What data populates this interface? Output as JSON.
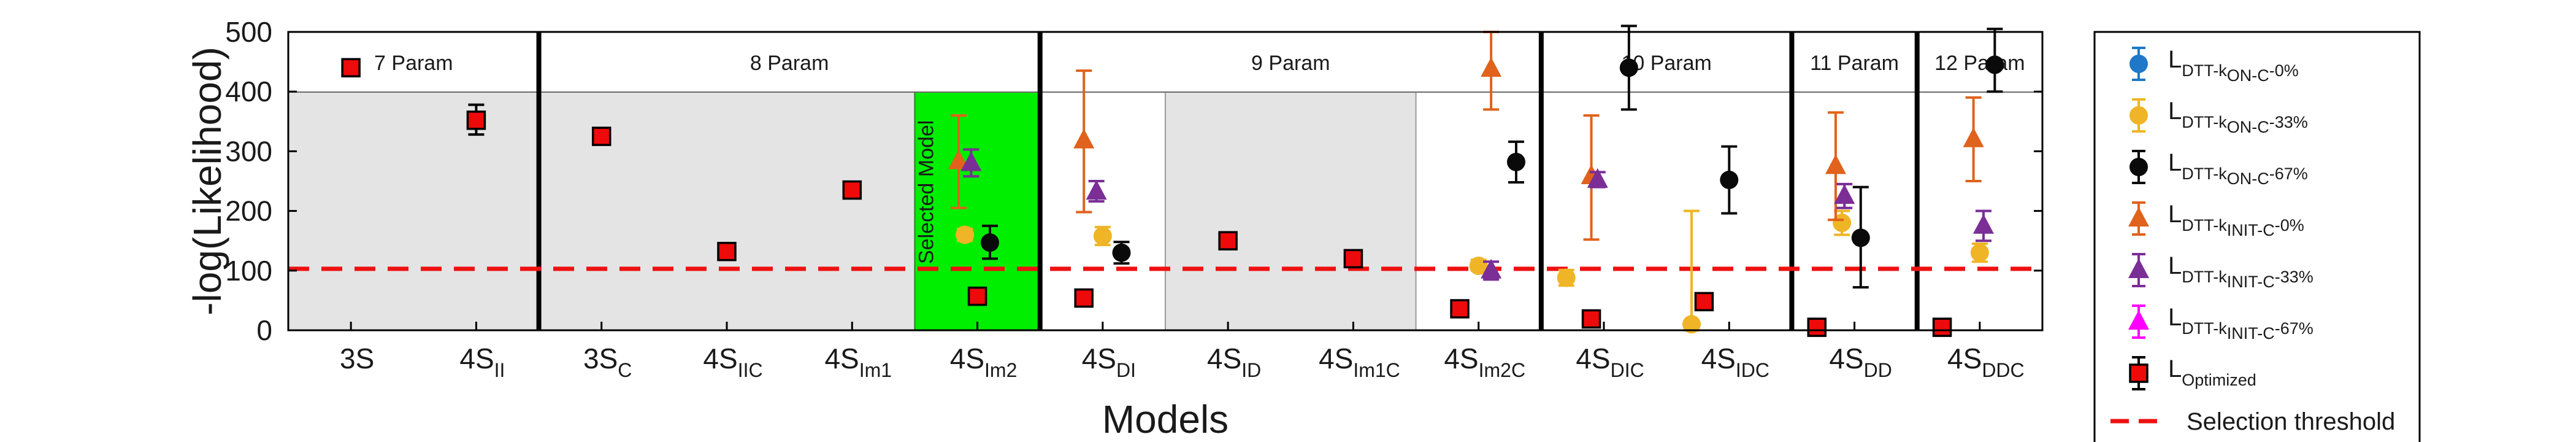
{
  "chart_data": {
    "type": "scatter",
    "ylabel": "-log(Likelihood)",
    "xlabel": "Models",
    "ylim": [
      0,
      500
    ],
    "yticks": [
      0,
      100,
      200,
      300,
      400,
      500
    ],
    "categories": [
      {
        "base": "3S",
        "sub": ""
      },
      {
        "base": "4S",
        "sub": "II"
      },
      {
        "base": "3S",
        "sub": "C"
      },
      {
        "base": "4S",
        "sub": "IIC"
      },
      {
        "base": "4S",
        "sub": "Im1"
      },
      {
        "base": "4S",
        "sub": "Im2"
      },
      {
        "base": "4S",
        "sub": "DI"
      },
      {
        "base": "4S",
        "sub": "ID"
      },
      {
        "base": "4S",
        "sub": "Im1C"
      },
      {
        "base": "4S",
        "sub": "Im2C"
      },
      {
        "base": "4S",
        "sub": "DIC"
      },
      {
        "base": "4S",
        "sub": "IDC"
      },
      {
        "base": "4S",
        "sub": "DD"
      },
      {
        "base": "4S",
        "sub": "DDC"
      }
    ],
    "groups": [
      {
        "label": "7 Param",
        "from": 0,
        "to": 1
      },
      {
        "label": "8 Param",
        "from": 2,
        "to": 5
      },
      {
        "label": "9 Param",
        "from": 6,
        "to": 9
      },
      {
        "label": "10 Param",
        "from": 10,
        "to": 11
      },
      {
        "label": "11 Param",
        "from": 12,
        "to": 12
      },
      {
        "label": "12 Param",
        "from": 13,
        "to": 13
      }
    ],
    "selected_model": {
      "index": 5,
      "label": "Selected Model",
      "color": "#00ee00"
    },
    "threshold": {
      "value": 103,
      "label": "Selection threshold",
      "color": "#ee1111"
    },
    "series": [
      {
        "name": "L",
        "sub": "DTT-k",
        "subsub": "ON-C",
        "suffix": "-0%",
        "marker": "circle",
        "color": "#1f78c8",
        "points": []
      },
      {
        "name": "L",
        "sub": "DTT-k",
        "subsub": "ON-C",
        "suffix": "-33%",
        "marker": "circle",
        "color": "#efb526",
        "points": [
          {
            "i": 5,
            "y": 160,
            "lo": 150,
            "hi": 170,
            "dx": -0.1
          },
          {
            "i": 6,
            "y": 158,
            "lo": 143,
            "hi": 173,
            "dx": 0.0
          },
          {
            "i": 9,
            "y": 108,
            "lo": 100,
            "hi": 118,
            "dx": 0.0
          },
          {
            "i": 10,
            "y": 88,
            "lo": 75,
            "hi": 101,
            "dx": -0.3
          },
          {
            "i": 11,
            "y": 10,
            "lo": 0,
            "hi": 200,
            "dx": -0.3
          },
          {
            "i": 12,
            "y": 180,
            "lo": 160,
            "hi": 200,
            "dx": -0.1
          },
          {
            "i": 13,
            "y": 130,
            "lo": 115,
            "hi": 145,
            "dx": 0.0
          }
        ]
      },
      {
        "name": "L",
        "sub": "DTT-k",
        "subsub": "ON-C",
        "suffix": "-67%",
        "marker": "circle",
        "color": "#0a0a0a",
        "points": [
          {
            "i": 5,
            "y": 147,
            "lo": 120,
            "hi": 175,
            "dx": 0.1
          },
          {
            "i": 6,
            "y": 130,
            "lo": 112,
            "hi": 148,
            "dx": 0.15
          },
          {
            "i": 9,
            "y": 282,
            "lo": 248,
            "hi": 316,
            "dx": 0.3
          },
          {
            "i": 10,
            "y": 440,
            "lo": 370,
            "hi": 510,
            "dx": 0.2
          },
          {
            "i": 11,
            "y": 252,
            "lo": 196,
            "hi": 308,
            "dx": 0.0
          },
          {
            "i": 12,
            "y": 155,
            "lo": 72,
            "hi": 240,
            "dx": 0.05
          },
          {
            "i": 13,
            "y": 445,
            "lo": 400,
            "hi": 505,
            "dx": 0.12
          }
        ]
      },
      {
        "name": "L",
        "sub": "DTT-k",
        "subsub": "INIT-C",
        "suffix": "-0%",
        "marker": "triangle",
        "color": "#e0621c",
        "points": [
          {
            "i": 5,
            "y": 283,
            "lo": 205,
            "hi": 360,
            "dx": -0.15
          },
          {
            "i": 6,
            "y": 318,
            "lo": 198,
            "hi": 435,
            "dx": -0.15
          },
          {
            "i": 9,
            "y": 438,
            "lo": 370,
            "hi": 500,
            "dx": 0.1
          },
          {
            "i": 10,
            "y": 258,
            "lo": 152,
            "hi": 360,
            "dx": -0.1
          },
          {
            "i": 12,
            "y": 275,
            "lo": 185,
            "hi": 365,
            "dx": -0.15
          },
          {
            "i": 13,
            "y": 320,
            "lo": 250,
            "hi": 390,
            "dx": -0.05
          }
        ]
      },
      {
        "name": "L",
        "sub": "DTT-k",
        "subsub": "INIT-C",
        "suffix": "-33%",
        "marker": "triangle",
        "color": "#7a2e96",
        "points": [
          {
            "i": 5,
            "y": 280,
            "lo": 258,
            "hi": 303,
            "dx": -0.05
          },
          {
            "i": 6,
            "y": 232,
            "lo": 216,
            "hi": 250,
            "dx": -0.05
          },
          {
            "i": 9,
            "y": 100,
            "lo": 85,
            "hi": 115,
            "dx": 0.1
          },
          {
            "i": 10,
            "y": 252,
            "lo": 240,
            "hi": 265,
            "dx": -0.05
          },
          {
            "i": 12,
            "y": 225,
            "lo": 205,
            "hi": 245,
            "dx": -0.08
          },
          {
            "i": 13,
            "y": 175,
            "lo": 150,
            "hi": 200,
            "dx": 0.03
          }
        ]
      },
      {
        "name": "L",
        "sub": "DTT-k",
        "subsub": "INIT-C",
        "suffix": "-67%",
        "marker": "triangle",
        "color": "#ff00ff",
        "points": []
      },
      {
        "name": "L",
        "sub": "Optimized",
        "subsub": "",
        "suffix": "",
        "marker": "square",
        "color": "#ee0a0a",
        "points": [
          {
            "i": 0,
            "y": 440,
            "lo": 427,
            "hi": 453,
            "dx": 0.0
          },
          {
            "i": 1,
            "y": 352,
            "lo": 328,
            "hi": 378,
            "dx": 0.0
          },
          {
            "i": 2,
            "y": 325,
            "lo": 316,
            "hi": 334,
            "dx": 0.0
          },
          {
            "i": 3,
            "y": 132,
            "lo": 123,
            "hi": 141,
            "dx": 0.0
          },
          {
            "i": 4,
            "y": 235,
            "lo": 226,
            "hi": 244,
            "dx": 0.0
          },
          {
            "i": 5,
            "y": 57,
            "lo": 49,
            "hi": 65,
            "dx": 0.0
          },
          {
            "i": 6,
            "y": 54,
            "lo": 46,
            "hi": 62,
            "dx": -0.15
          },
          {
            "i": 7,
            "y": 150,
            "lo": 142,
            "hi": 158,
            "dx": 0.0
          },
          {
            "i": 8,
            "y": 120,
            "lo": 112,
            "hi": 128,
            "dx": 0.0
          },
          {
            "i": 9,
            "y": 36,
            "lo": 28,
            "hi": 44,
            "dx": -0.15
          },
          {
            "i": 10,
            "y": 19,
            "lo": 11,
            "hi": 27,
            "dx": -0.1
          },
          {
            "i": 11,
            "y": 48,
            "lo": 40,
            "hi": 56,
            "dx": -0.2
          },
          {
            "i": 12,
            "y": 5,
            "lo": 0,
            "hi": 12,
            "dx": -0.3
          },
          {
            "i": 13,
            "y": 5,
            "lo": 0,
            "hi": 12,
            "dx": -0.3
          }
        ]
      }
    ]
  }
}
